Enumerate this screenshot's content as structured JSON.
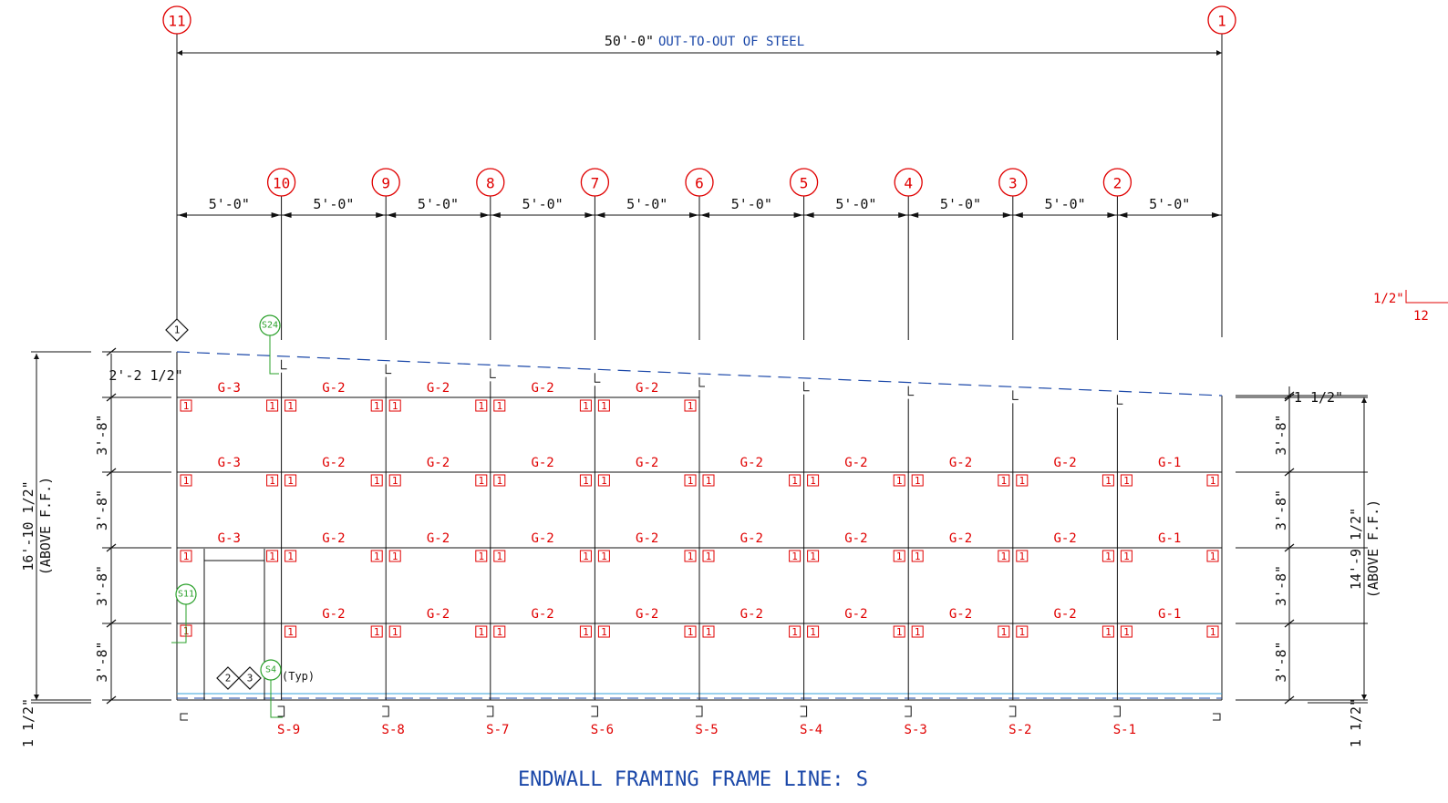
{
  "title": "ENDWALL FRAMING FRAME LINE: S",
  "overall_dimension": {
    "value": "50'-0\"",
    "note": "OUT-TO-OUT OF STEEL"
  },
  "grid_lines": [
    "11",
    "10",
    "9",
    "8",
    "7",
    "6",
    "5",
    "4",
    "3",
    "2",
    "1"
  ],
  "bay_dimension": "5'-0\"",
  "studs": [
    "S-9",
    "S-8",
    "S-7",
    "S-6",
    "S-5",
    "S-4",
    "S-3",
    "S-2",
    "S-1"
  ],
  "left_height": {
    "value": "16'-10 1/2\"",
    "note": "(ABOVE F.F.)"
  },
  "right_height": {
    "value": "14'-9 1/2\"",
    "note": "(ABOVE F.F.)"
  },
  "left_top_dim": "2'-2 1/2\"",
  "right_top_dim": "1 1/2\"",
  "girt_spacing": "3'-8\"",
  "base_dim": "1 1/2\"",
  "slope": {
    "rise": "1/2\"",
    "run": "12"
  },
  "girt_rows": [
    [
      "G-3",
      "G-2",
      "G-2",
      "G-2",
      "G-2",
      "",
      "",
      "",
      "",
      ""
    ],
    [
      "G-3",
      "G-2",
      "G-2",
      "G-2",
      "G-2",
      "G-2",
      "G-2",
      "G-2",
      "G-2",
      "G-1"
    ],
    [
      "G-3",
      "G-2",
      "G-2",
      "G-2",
      "G-2",
      "G-2",
      "G-2",
      "G-2",
      "G-2",
      "G-1"
    ],
    [
      "",
      "G-2",
      "G-2",
      "G-2",
      "G-2",
      "G-2",
      "G-2",
      "G-2",
      "G-2",
      "G-1"
    ]
  ],
  "connection_mark": "1",
  "callouts": {
    "s24": "S24",
    "s11": "S11",
    "s4": "S4",
    "typ": "(Typ)"
  },
  "sheet_refs": [
    "1",
    "2",
    "3"
  ],
  "colors": {
    "grid": "#e00000",
    "note": "#1a47a8",
    "roof": "#1a47a8",
    "slab": "#33a0d8",
    "callout": "#2aa02a"
  }
}
